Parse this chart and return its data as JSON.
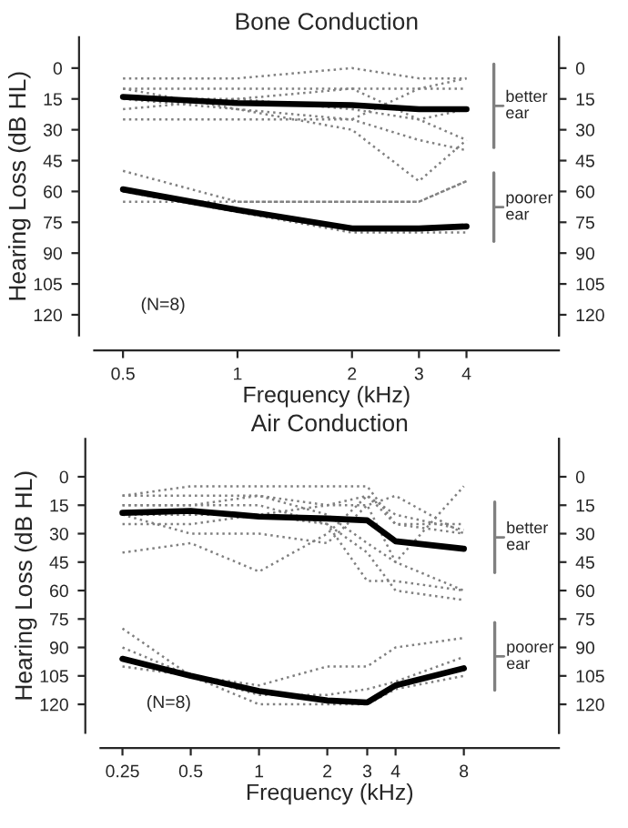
{
  "chart_data": [
    {
      "type": "line",
      "title": "Bone Conduction",
      "xlabel": "Frequency (kHz)",
      "ylabel": "Hearing Loss (dB HL)",
      "log": "x",
      "x": [
        0.5,
        1,
        2,
        3,
        4
      ],
      "xlim": [
        0.42,
        7
      ],
      "xticks": [
        0.5,
        1,
        2,
        3,
        4
      ],
      "ylim": [
        130,
        -15
      ],
      "yticks": [
        0,
        15,
        30,
        45,
        60,
        75,
        90,
        105,
        120
      ],
      "y2lim": [
        130,
        -15
      ],
      "y2ticks": [
        0,
        15,
        30,
        45,
        60,
        75,
        90,
        105,
        120
      ],
      "grid": false,
      "marker": "none",
      "series": [
        {
          "color": "#808080",
          "line_style": "dotted",
          "values": [
            5,
            5,
            0,
            5,
            5
          ]
        },
        {
          "color": "#808080",
          "line_style": "dotted",
          "values": [
            10,
            10,
            10,
            10,
            10
          ]
        },
        {
          "color": "#808080",
          "line_style": "dotted",
          "values": [
            10,
            20,
            30,
            55,
            35
          ]
        },
        {
          "color": "#808080",
          "line_style": "dotted",
          "values": [
            20,
            15,
            10,
            25,
            35
          ]
        },
        {
          "color": "#808080",
          "line_style": "dotted",
          "values": [
            25,
            25,
            25,
            10,
            5
          ]
        },
        {
          "color": "#808080",
          "line_style": "dotted",
          "values": [
            15,
            20,
            25,
            35,
            40
          ]
        },
        {
          "color": "#808080",
          "line_style": "dotted",
          "values": [
            15,
            15,
            20,
            25,
            20
          ]
        },
        {
          "color": "#000000",
          "line_style": "solid",
          "values": [
            14,
            17,
            18,
            20,
            20
          ]
        },
        {
          "color": "#808080",
          "line_style": "dotted",
          "values": [
            50,
            65,
            65,
            65,
            55
          ]
        },
        {
          "color": "#808080",
          "line_style": "dotted",
          "values": [
            65,
            65,
            65,
            65,
            55
          ]
        },
        {
          "color": "#808080",
          "line_style": "dotted",
          "values": [
            60,
            70,
            80,
            80,
            80
          ]
        },
        {
          "color": "#000000",
          "line_style": "solid",
          "values": [
            59,
            69,
            78,
            78,
            77
          ]
        }
      ],
      "annotations": [
        "better ear",
        "poorer ear",
        "(N=8)"
      ]
    },
    {
      "type": "line",
      "title": "Air Conduction",
      "xlabel": "Frequency (kHz)",
      "ylabel": "Hearing Loss (dB HL)",
      "log": "x",
      "x": [
        0.25,
        0.5,
        1,
        2,
        3,
        4,
        8
      ],
      "xlim": [
        0.2,
        21
      ],
      "xticks": [
        0.25,
        0.5,
        1,
        2,
        3,
        4,
        8
      ],
      "ylim": [
        135,
        -20
      ],
      "yticks": [
        0,
        15,
        30,
        45,
        60,
        75,
        90,
        105,
        120
      ],
      "y2lim": [
        135,
        -20
      ],
      "y2ticks": [
        0,
        15,
        30,
        45,
        60,
        75,
        90,
        105,
        120
      ],
      "grid": false,
      "marker": "none",
      "series": [
        {
          "color": "#808080",
          "line_style": "dotted",
          "values": [
            10,
            5,
            5,
            5,
            5,
            25,
            25
          ]
        },
        {
          "color": "#808080",
          "line_style": "dotted",
          "values": [
            10,
            10,
            10,
            15,
            10,
            25,
            30
          ]
        },
        {
          "color": "#808080",
          "line_style": "dotted",
          "values": [
            15,
            15,
            10,
            20,
            35,
            45,
            60
          ]
        },
        {
          "color": "#808080",
          "line_style": "dotted",
          "values": [
            20,
            30,
            30,
            35,
            15,
            10,
            30
          ]
        },
        {
          "color": "#808080",
          "line_style": "dotted",
          "values": [
            25,
            25,
            20,
            25,
            55,
            55,
            60
          ]
        },
        {
          "color": "#808080",
          "line_style": "dotted",
          "values": [
            40,
            35,
            50,
            30,
            10,
            20,
            28
          ]
        },
        {
          "color": "#808080",
          "line_style": "dotted",
          "values": [
            15,
            15,
            15,
            25,
            40,
            60,
            65
          ]
        },
        {
          "color": "#808080",
          "line_style": "dotted",
          "values": [
            20,
            20,
            20,
            15,
            15,
            45,
            5
          ]
        },
        {
          "color": "#000000",
          "line_style": "solid",
          "values": [
            19,
            18,
            21,
            22,
            23,
            34,
            38
          ]
        },
        {
          "color": "#808080",
          "line_style": "dotted",
          "values": [
            80,
            105,
            110,
            100,
            100,
            90,
            85
          ]
        },
        {
          "color": "#808080",
          "line_style": "dotted",
          "values": [
            90,
            105,
            115,
            115,
            112,
            108,
            95
          ]
        },
        {
          "color": "#808080",
          "line_style": "dotted",
          "values": [
            100,
            105,
            120,
            120,
            120,
            112,
            105
          ]
        },
        {
          "color": "#000000",
          "line_style": "solid",
          "values": [
            96,
            105,
            113,
            118,
            119,
            110,
            101
          ]
        }
      ],
      "annotations": [
        "better ear",
        "poorer ear",
        "(N=8)"
      ]
    }
  ]
}
